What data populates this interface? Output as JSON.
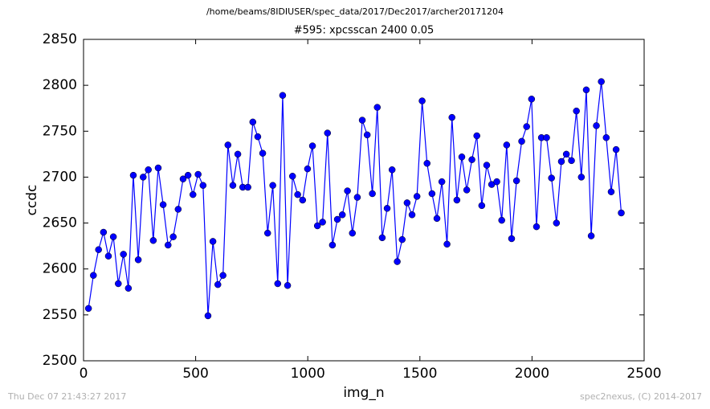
{
  "chart_data": {
    "type": "line",
    "title": "/home/beams/8IDIUSER/spec_data/2017/Dec2017/archer20171204",
    "subtitle": "#595: xpcsscan 2400 0.05",
    "xlabel": "img_n",
    "ylabel": "ccdc",
    "annotations": [
      "Thu Dec 07 21:43:27 2017",
      "spec2nexus, (C) 2014-2017"
    ],
    "color": "#0000ff",
    "grid": false,
    "xlim": [
      0,
      2500
    ],
    "xticks": [
      0,
      500,
      1000,
      1500,
      2000,
      2500
    ],
    "ylim": [
      2500,
      2850
    ],
    "yticks": [
      2500,
      2550,
      2600,
      2650,
      2700,
      2750,
      2800,
      2850
    ],
    "x": [
      22,
      44,
      67,
      89,
      111,
      133,
      155,
      178,
      200,
      222,
      244,
      266,
      289,
      311,
      333,
      355,
      377,
      400,
      422,
      444,
      466,
      488,
      511,
      533,
      555,
      577,
      599,
      622,
      644,
      666,
      688,
      710,
      733,
      755,
      777,
      799,
      821,
      844,
      866,
      888,
      910,
      932,
      955,
      977,
      999,
      1021,
      1043,
      1066,
      1088,
      1110,
      1132,
      1154,
      1177,
      1199,
      1221,
      1243,
      1265,
      1288,
      1310,
      1332,
      1354,
      1376,
      1399,
      1421,
      1443,
      1465,
      1487,
      1510,
      1532,
      1554,
      1576,
      1598,
      1621,
      1643,
      1665,
      1687,
      1709,
      1732,
      1754,
      1776,
      1798,
      1820,
      1843,
      1865,
      1887,
      1909,
      1931,
      1954,
      1976,
      1998,
      2020,
      2042,
      2065,
      2087,
      2109,
      2131,
      2153,
      2176,
      2198,
      2220,
      2242,
      2264,
      2287,
      2309,
      2331,
      2353,
      2375,
      2398
    ],
    "values": [
      2557,
      2593,
      2621,
      2640,
      2614,
      2635,
      2584,
      2616,
      2579,
      2702,
      2610,
      2700,
      2708,
      2631,
      2710,
      2670,
      2626,
      2635,
      2665,
      2698,
      2702,
      2681,
      2703,
      2691,
      2549,
      2630,
      2583,
      2593,
      2735,
      2691,
      2725,
      2689,
      2689,
      2760,
      2744,
      2726,
      2639,
      2691,
      2584,
      2789,
      2582,
      2701,
      2681,
      2675,
      2709,
      2734,
      2647,
      2651,
      2748,
      2626,
      2654,
      2659,
      2685,
      2639,
      2678,
      2762,
      2746,
      2682,
      2776,
      2634,
      2666,
      2708,
      2608,
      2632,
      2672,
      2659,
      2679,
      2783,
      2715,
      2682,
      2655,
      2695,
      2627,
      2765,
      2675,
      2722,
      2686,
      2719,
      2745,
      2669,
      2713,
      2692,
      2695,
      2653,
      2735,
      2633,
      2696,
      2739,
      2755,
      2785,
      2646,
      2743,
      2743,
      2699,
      2650,
      2717,
      2725,
      2718,
      2772,
      2700,
      2795,
      2636,
      2756,
      2804,
      2743,
      2684,
      2730,
      2661
    ]
  }
}
